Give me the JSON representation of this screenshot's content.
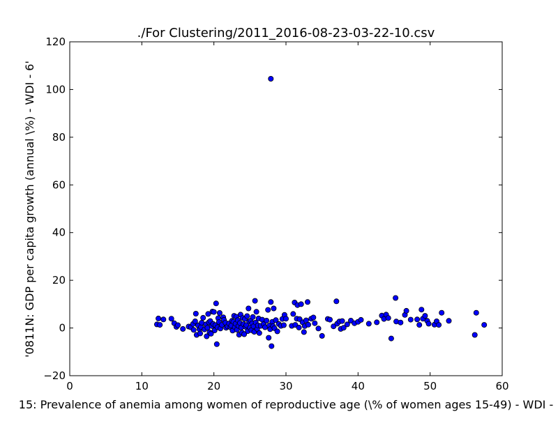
{
  "chart_data": {
    "type": "scatter",
    "title": "./For Clustering/2011_2016-08-23-03-22-10.csv",
    "xlabel": "15: Prevalence of anemia among women of reproductive age  (\\% of women ages 15-49) - WDI - ",
    "ylabel": "'0811N: GDP per capita growth  (annual \\%) - WDI - 6'",
    "xlim": [
      0,
      60
    ],
    "ylim": [
      -20,
      120
    ],
    "xticks": [
      "0",
      "10",
      "20",
      "30",
      "40",
      "50",
      "60"
    ],
    "yticks": [
      "−20",
      "0",
      "20",
      "40",
      "60",
      "80",
      "100",
      "120"
    ],
    "grid": false,
    "marker_color": "#0000ff",
    "points": [
      [
        27.9,
        104.5
      ],
      [
        12.1,
        1.5
      ],
      [
        12.3,
        4.0
      ],
      [
        12.5,
        1.3
      ],
      [
        13.0,
        3.6
      ],
      [
        14.1,
        3.9
      ],
      [
        14.5,
        2.0
      ],
      [
        14.8,
        0.5
      ],
      [
        15.0,
        1.2
      ],
      [
        15.7,
        -0.4
      ],
      [
        16.5,
        0.6
      ],
      [
        16.8,
        0.3
      ],
      [
        17.1,
        1.7
      ],
      [
        17.2,
        -0.8
      ],
      [
        17.4,
        2.8
      ],
      [
        17.5,
        6.0
      ],
      [
        17.6,
        -2.9
      ],
      [
        17.8,
        1.1
      ],
      [
        18.0,
        -0.5
      ],
      [
        18.1,
        -2.3
      ],
      [
        18.2,
        0.4
      ],
      [
        18.3,
        2.2
      ],
      [
        18.5,
        4.3
      ],
      [
        18.7,
        -0.6
      ],
      [
        18.9,
        1.5
      ],
      [
        19.0,
        -3.5
      ],
      [
        19.1,
        0.1
      ],
      [
        19.2,
        5.9
      ],
      [
        19.3,
        2.4
      ],
      [
        19.4,
        -1.8
      ],
      [
        19.5,
        2.9
      ],
      [
        19.6,
        -2.4
      ],
      [
        19.7,
        0.8
      ],
      [
        19.8,
        6.9
      ],
      [
        19.9,
        1.7
      ],
      [
        20.0,
        6.7
      ],
      [
        20.1,
        -1.0
      ],
      [
        20.2,
        1.2
      ],
      [
        20.3,
        10.3
      ],
      [
        20.4,
        -6.8
      ],
      [
        20.5,
        0.3
      ],
      [
        20.6,
        4.1
      ],
      [
        20.7,
        2.5
      ],
      [
        20.8,
        6.3
      ],
      [
        20.9,
        -0.2
      ],
      [
        21.1,
        1.3
      ],
      [
        21.3,
        4.5
      ],
      [
        21.4,
        3.4
      ],
      [
        21.6,
        2.2
      ],
      [
        21.7,
        0.1
      ],
      [
        21.9,
        0.7
      ],
      [
        22.1,
        1.9
      ],
      [
        22.3,
        0.3
      ],
      [
        22.4,
        1.0
      ],
      [
        22.5,
        3.0
      ],
      [
        22.6,
        -1.1
      ],
      [
        22.7,
        2.6
      ],
      [
        22.8,
        5.1
      ],
      [
        22.9,
        0.4
      ],
      [
        23.0,
        1.8
      ],
      [
        23.1,
        4.7
      ],
      [
        23.2,
        -0.7
      ],
      [
        23.3,
        3.3
      ],
      [
        23.4,
        0.9
      ],
      [
        23.5,
        -2.8
      ],
      [
        23.6,
        2.1
      ],
      [
        23.7,
        5.6
      ],
      [
        23.8,
        0.2
      ],
      [
        23.9,
        -1.9
      ],
      [
        24.0,
        4.2
      ],
      [
        24.1,
        1.6
      ],
      [
        24.2,
        -2.6
      ],
      [
        24.3,
        3.8
      ],
      [
        24.4,
        0.5
      ],
      [
        24.5,
        1.2
      ],
      [
        24.6,
        5.0
      ],
      [
        24.7,
        -1.3
      ],
      [
        24.8,
        8.2
      ],
      [
        24.9,
        2.7
      ],
      [
        25.0,
        0.1
      ],
      [
        25.1,
        3.1
      ],
      [
        25.2,
        -0.9
      ],
      [
        25.3,
        1.9
      ],
      [
        25.4,
        4.6
      ],
      [
        25.5,
        0.7
      ],
      [
        25.6,
        -1.6
      ],
      [
        25.7,
        11.4
      ],
      [
        25.8,
        2.3
      ],
      [
        25.9,
        6.8
      ],
      [
        26.0,
        -0.4
      ],
      [
        26.1,
        1.1
      ],
      [
        26.2,
        4.0
      ],
      [
        26.3,
        -2.1
      ],
      [
        26.5,
        0.9
      ],
      [
        26.7,
        3.5
      ],
      [
        26.9,
        1.6
      ],
      [
        27.1,
        0.3
      ],
      [
        27.3,
        3.1
      ],
      [
        27.5,
        7.6
      ],
      [
        27.6,
        -4.1
      ],
      [
        27.7,
        1.0
      ],
      [
        27.8,
        -0.5
      ],
      [
        27.9,
        10.9
      ],
      [
        28.0,
        -7.6
      ],
      [
        28.1,
        2.6
      ],
      [
        28.2,
        0.8
      ],
      [
        28.3,
        8.2
      ],
      [
        28.4,
        -0.1
      ],
      [
        28.6,
        3.3
      ],
      [
        28.8,
        -1.4
      ],
      [
        29.0,
        1.7
      ],
      [
        29.3,
        0.9
      ],
      [
        29.5,
        3.8
      ],
      [
        29.7,
        1.2
      ],
      [
        29.8,
        5.5
      ],
      [
        30.0,
        3.9
      ],
      [
        30.8,
        0.9
      ],
      [
        31.0,
        5.9
      ],
      [
        31.2,
        10.7
      ],
      [
        31.3,
        1.3
      ],
      [
        31.5,
        3.9
      ],
      [
        31.6,
        9.6
      ],
      [
        31.8,
        0.2
      ],
      [
        31.9,
        3.7
      ],
      [
        32.1,
        10.0
      ],
      [
        32.3,
        2.4
      ],
      [
        32.5,
        -1.7
      ],
      [
        32.6,
        0.8
      ],
      [
        32.8,
        3.2
      ],
      [
        33.0,
        10.9
      ],
      [
        33.1,
        1.4
      ],
      [
        33.5,
        3.9
      ],
      [
        33.8,
        4.4
      ],
      [
        34.0,
        2.0
      ],
      [
        34.5,
        -0.2
      ],
      [
        35.0,
        -3.3
      ],
      [
        35.8,
        3.8
      ],
      [
        36.1,
        3.5
      ],
      [
        36.6,
        0.7
      ],
      [
        37.0,
        11.2
      ],
      [
        37.1,
        1.8
      ],
      [
        37.4,
        2.7
      ],
      [
        37.6,
        -0.4
      ],
      [
        37.8,
        2.9
      ],
      [
        38.0,
        0.1
      ],
      [
        38.5,
        1.5
      ],
      [
        39.0,
        3.1
      ],
      [
        39.5,
        2.0
      ],
      [
        40.0,
        2.6
      ],
      [
        40.4,
        3.4
      ],
      [
        41.5,
        1.8
      ],
      [
        42.6,
        2.4
      ],
      [
        43.3,
        5.2
      ],
      [
        43.6,
        3.8
      ],
      [
        43.9,
        5.6
      ],
      [
        44.2,
        4.2
      ],
      [
        44.6,
        -4.4
      ],
      [
        45.2,
        12.6
      ],
      [
        45.3,
        2.7
      ],
      [
        45.9,
        2.3
      ],
      [
        46.5,
        5.5
      ],
      [
        46.7,
        7.2
      ],
      [
        47.3,
        3.5
      ],
      [
        48.2,
        3.6
      ],
      [
        48.5,
        1.3
      ],
      [
        48.8,
        7.7
      ],
      [
        49.0,
        3.9
      ],
      [
        49.3,
        5.1
      ],
      [
        49.6,
        3.0
      ],
      [
        49.8,
        1.8
      ],
      [
        50.6,
        1.4
      ],
      [
        50.9,
        2.8
      ],
      [
        51.2,
        1.3
      ],
      [
        51.6,
        6.4
      ],
      [
        52.6,
        3.0
      ],
      [
        56.2,
        -2.9
      ],
      [
        56.4,
        6.4
      ],
      [
        57.5,
        1.3
      ]
    ]
  }
}
